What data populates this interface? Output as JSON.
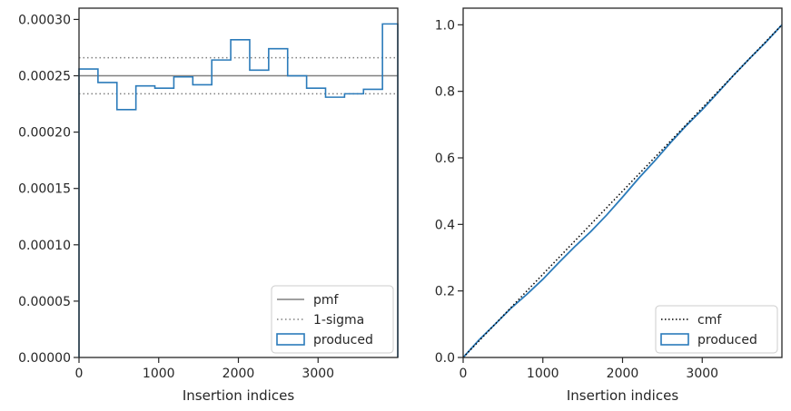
{
  "colors": {
    "produced": "#2b7bba",
    "pmf": "#808080",
    "sigma": "#808080",
    "cmf": "#000000",
    "spine": "#262626"
  },
  "chart_data": [
    {
      "type": "step",
      "xlabel": "Insertion indices",
      "ylabel": "",
      "xlim": [
        0,
        4000
      ],
      "ylim": [
        0,
        0.00031
      ],
      "x_ticks": [
        0,
        1000,
        2000,
        3000
      ],
      "x_tick_labels": [
        "0",
        "1000",
        "2000",
        "3000"
      ],
      "y_ticks": [
        0,
        5e-05,
        0.0001,
        0.00015,
        0.0002,
        0.00025,
        0.0003
      ],
      "y_tick_labels": [
        "0.00000",
        "0.00005",
        "0.00010",
        "0.00015",
        "0.00020",
        "0.00025",
        "0.00030"
      ],
      "legend_position": "lower right",
      "legend": [
        "pmf",
        "1-sigma",
        "produced"
      ],
      "pmf": 0.00025,
      "sigma_band": [
        0.000234,
        0.000266
      ],
      "bin_edges": [
        0,
        238,
        476,
        714,
        952,
        1190,
        1428,
        1666,
        1904,
        2142,
        2380,
        2618,
        2856,
        3094,
        3332,
        3570,
        3808,
        4000
      ],
      "produced": [
        0.000256,
        0.000244,
        0.00022,
        0.000241,
        0.000239,
        0.000249,
        0.000242,
        0.000264,
        0.000282,
        0.000255,
        0.000274,
        0.00025,
        0.000239,
        0.000231,
        0.000234,
        0.000238,
        0.000296
      ]
    },
    {
      "type": "line",
      "xlabel": "Insertion indices",
      "ylabel": "",
      "xlim": [
        0,
        4000
      ],
      "ylim": [
        0,
        1.05
      ],
      "x_ticks": [
        0,
        1000,
        2000,
        3000
      ],
      "x_tick_labels": [
        "0",
        "1000",
        "2000",
        "3000"
      ],
      "y_ticks": [
        0,
        0.2,
        0.4,
        0.6,
        0.8,
        1.0
      ],
      "y_tick_labels": [
        "0.0",
        "0.2",
        "0.4",
        "0.6",
        "0.8",
        "1.0"
      ],
      "legend_position": "lower right",
      "legend": [
        "cmf",
        "produced"
      ],
      "cmf": {
        "x": [
          0,
          4000
        ],
        "y": [
          0,
          1.0
        ]
      },
      "produced": {
        "x": [
          0,
          200,
          400,
          600,
          800,
          1000,
          1200,
          1400,
          1600,
          1800,
          2000,
          2200,
          2400,
          2600,
          2800,
          3000,
          3200,
          3400,
          3600,
          3800,
          4000
        ],
        "y": [
          0,
          0.053,
          0.1,
          0.148,
          0.19,
          0.235,
          0.285,
          0.333,
          0.378,
          0.428,
          0.482,
          0.538,
          0.59,
          0.645,
          0.697,
          0.745,
          0.797,
          0.85,
          0.9,
          0.948,
          1.0
        ]
      }
    }
  ]
}
